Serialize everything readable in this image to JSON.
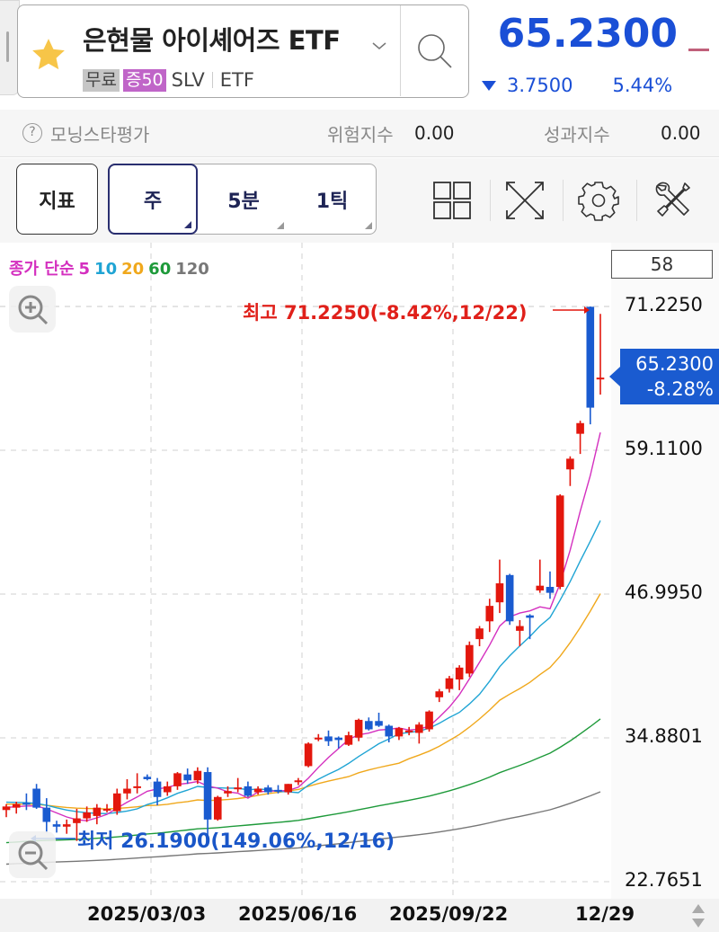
{
  "header": {
    "title": "은현물 아이셰어즈 ETF",
    "badges": {
      "free": "무료",
      "margin": "증50",
      "ticker": "SLV",
      "type": "ETF"
    },
    "price": "65.2300",
    "change": "3.7500",
    "change_pct": "5.44%",
    "change_direction": "down",
    "icons": {
      "favorite": "star-icon",
      "dropdown": "chevron-down-icon",
      "search": "search-icon"
    }
  },
  "morningstar": {
    "label": "모닝스타평가",
    "help_icon": "?",
    "risk_label": "위험지수",
    "risk_value": "0.00",
    "perf_label": "성과지수",
    "perf_value": "0.00"
  },
  "toolbar": {
    "indicator_label": "지표",
    "periods": [
      {
        "label": "주",
        "active": true
      },
      {
        "label": "5분",
        "active": false
      },
      {
        "label": "1틱",
        "active": false
      }
    ],
    "icons": [
      "layout-grid-icon",
      "fullscreen-icon",
      "settings-gear-icon",
      "tools-icon"
    ]
  },
  "chart": {
    "legend": {
      "prefix": "종가 단순",
      "ma": [
        {
          "label": "5",
          "color": "#d42fbf"
        },
        {
          "label": "10",
          "color": "#1fa4d4"
        },
        {
          "label": "20",
          "color": "#f0a81c"
        },
        {
          "label": "60",
          "color": "#1e9a3a"
        },
        {
          "label": "120",
          "color": "#777777"
        }
      ]
    },
    "count": "58",
    "y_labels": [
      "71.2250",
      "59.1100",
      "46.9950",
      "34.8801",
      "22.7651"
    ],
    "current_price": "65.2300",
    "current_pct": "-8.28%",
    "high_label": "최고 71.2250(-8.42%,12/22)",
    "low_label": "최저 26.1900(149.06%,12/16)",
    "x_labels": [
      "2025/03/03",
      "2025/06/16",
      "2025/09/22",
      "12/29"
    ],
    "colors": {
      "up": "#e3170d",
      "down": "#1a5bd0",
      "grid": "#d0d0d0",
      "price_tag": "#1a5bd0"
    }
  },
  "chart_data": {
    "type": "candlestick",
    "title": "은현물 아이셰어즈 ETF (SLV) 주봉",
    "xlabel": "",
    "ylabel": "",
    "ylim": [
      22.7651,
      71.225
    ],
    "y_ticks": [
      22.7651,
      34.8801,
      46.995,
      59.11,
      71.225
    ],
    "x_ticks": [
      "2025/03/03",
      "2025/06/16",
      "2025/09/22",
      "12/29"
    ],
    "grid": true,
    "legend": [
      "종가 단순 5",
      "10",
      "20",
      "60",
      "120"
    ],
    "annotations": [
      "최고 71.2250(-8.42%,12/22)",
      "최저 26.1900(149.06%,12/16)",
      "현재가 65.2300 -8.28%"
    ],
    "candles": [
      {
        "o": 28.8,
        "h": 29.3,
        "l": 28.2,
        "c": 29.1
      },
      {
        "o": 29.0,
        "h": 29.5,
        "l": 28.5,
        "c": 29.3
      },
      {
        "o": 29.4,
        "h": 30.2,
        "l": 28.8,
        "c": 29.3
      },
      {
        "o": 30.6,
        "h": 31.0,
        "l": 28.9,
        "c": 29.0
      },
      {
        "o": 29.0,
        "h": 29.8,
        "l": 26.9,
        "c": 27.8
      },
      {
        "o": 27.6,
        "h": 27.9,
        "l": 26.9,
        "c": 27.4
      },
      {
        "o": 27.4,
        "h": 28.0,
        "l": 26.8,
        "c": 27.6
      },
      {
        "o": 27.7,
        "h": 28.9,
        "l": 26.2,
        "c": 28.1
      },
      {
        "o": 28.1,
        "h": 29.1,
        "l": 27.8,
        "c": 28.6
      },
      {
        "o": 28.3,
        "h": 29.3,
        "l": 27.6,
        "c": 29.0
      },
      {
        "o": 28.9,
        "h": 29.3,
        "l": 28.6,
        "c": 28.9
      },
      {
        "o": 28.7,
        "h": 30.6,
        "l": 28.4,
        "c": 30.2
      },
      {
        "o": 30.2,
        "h": 31.4,
        "l": 29.7,
        "c": 30.6
      },
      {
        "o": 30.7,
        "h": 31.9,
        "l": 30.2,
        "c": 30.8
      },
      {
        "o": 31.6,
        "h": 31.8,
        "l": 31.3,
        "c": 31.4
      },
      {
        "o": 31.2,
        "h": 31.5,
        "l": 29.2,
        "c": 29.9
      },
      {
        "o": 30.3,
        "h": 31.2,
        "l": 30.0,
        "c": 30.8
      },
      {
        "o": 30.8,
        "h": 32.0,
        "l": 30.5,
        "c": 31.9
      },
      {
        "o": 31.8,
        "h": 32.3,
        "l": 31.0,
        "c": 31.3
      },
      {
        "o": 31.3,
        "h": 32.4,
        "l": 31.0,
        "c": 32.1
      },
      {
        "o": 32.0,
        "h": 32.4,
        "l": 26.2,
        "c": 28.0
      },
      {
        "o": 28.0,
        "h": 30.0,
        "l": 27.9,
        "c": 29.9
      },
      {
        "o": 30.2,
        "h": 30.8,
        "l": 29.9,
        "c": 30.4
      },
      {
        "o": 30.6,
        "h": 31.5,
        "l": 30.3,
        "c": 30.7
      },
      {
        "o": 30.8,
        "h": 31.2,
        "l": 29.9,
        "c": 30.0
      },
      {
        "o": 30.3,
        "h": 30.8,
        "l": 30.1,
        "c": 30.6
      },
      {
        "o": 30.7,
        "h": 30.9,
        "l": 30.1,
        "c": 30.3
      },
      {
        "o": 30.5,
        "h": 30.9,
        "l": 30.2,
        "c": 30.4
      },
      {
        "o": 30.3,
        "h": 31.0,
        "l": 30.1,
        "c": 31.0
      },
      {
        "o": 31.2,
        "h": 31.5,
        "l": 30.9,
        "c": 31.3
      },
      {
        "o": 32.5,
        "h": 34.5,
        "l": 32.4,
        "c": 34.4
      },
      {
        "o": 34.9,
        "h": 35.2,
        "l": 34.6,
        "c": 34.9
      },
      {
        "o": 35.0,
        "h": 35.5,
        "l": 34.2,
        "c": 34.6
      },
      {
        "o": 34.9,
        "h": 35.0,
        "l": 34.0,
        "c": 34.7
      },
      {
        "o": 34.3,
        "h": 35.4,
        "l": 34.2,
        "c": 35.1
      },
      {
        "o": 34.9,
        "h": 36.5,
        "l": 34.6,
        "c": 36.4
      },
      {
        "o": 36.3,
        "h": 36.6,
        "l": 35.5,
        "c": 35.6
      },
      {
        "o": 36.3,
        "h": 37.0,
        "l": 35.8,
        "c": 35.9
      },
      {
        "o": 35.9,
        "h": 36.0,
        "l": 34.5,
        "c": 35.0
      },
      {
        "o": 35.0,
        "h": 35.8,
        "l": 34.7,
        "c": 35.7
      },
      {
        "o": 35.4,
        "h": 35.8,
        "l": 35.1,
        "c": 35.5
      },
      {
        "o": 35.3,
        "h": 36.2,
        "l": 34.4,
        "c": 36.0
      },
      {
        "o": 35.6,
        "h": 37.2,
        "l": 35.4,
        "c": 37.1
      },
      {
        "o": 38.3,
        "h": 39.0,
        "l": 37.9,
        "c": 38.8
      },
      {
        "o": 39.0,
        "h": 40.1,
        "l": 38.7,
        "c": 39.9
      },
      {
        "o": 39.8,
        "h": 41.0,
        "l": 38.9,
        "c": 40.8
      },
      {
        "o": 40.3,
        "h": 43.0,
        "l": 40.0,
        "c": 42.7
      },
      {
        "o": 43.2,
        "h": 44.3,
        "l": 42.6,
        "c": 44.1
      },
      {
        "o": 44.7,
        "h": 46.6,
        "l": 43.8,
        "c": 46.0
      },
      {
        "o": 46.3,
        "h": 49.9,
        "l": 45.4,
        "c": 47.9
      },
      {
        "o": 48.6,
        "h": 48.7,
        "l": 44.4,
        "c": 44.7
      },
      {
        "o": 43.9,
        "h": 44.8,
        "l": 42.6,
        "c": 44.3
      },
      {
        "o": 45.2,
        "h": 45.3,
        "l": 43.2,
        "c": 45.0
      },
      {
        "o": 47.3,
        "h": 49.9,
        "l": 47.1,
        "c": 47.7
      },
      {
        "o": 47.6,
        "h": 48.9,
        "l": 46.6,
        "c": 47.1
      },
      {
        "o": 47.6,
        "h": 55.4,
        "l": 47.4,
        "c": 55.3
      },
      {
        "o": 57.5,
        "h": 58.6,
        "l": 56.1,
        "c": 58.4
      },
      {
        "o": 60.5,
        "h": 61.6,
        "l": 58.8,
        "c": 61.4
      },
      {
        "o": 71.2,
        "h": 71.225,
        "l": 61.3,
        "c": 62.7
      },
      {
        "o": 65.2,
        "h": 70.6,
        "l": 63.8,
        "c": 65.23
      }
    ],
    "ma_series_end_values": {
      "ma5": 61.6,
      "ma10": 54.3,
      "ma20": 47.7,
      "ma60": 36.3,
      "ma120": 31.8
    }
  },
  "date_axis": {
    "scroll_icon": "scroll-updown-icon"
  }
}
